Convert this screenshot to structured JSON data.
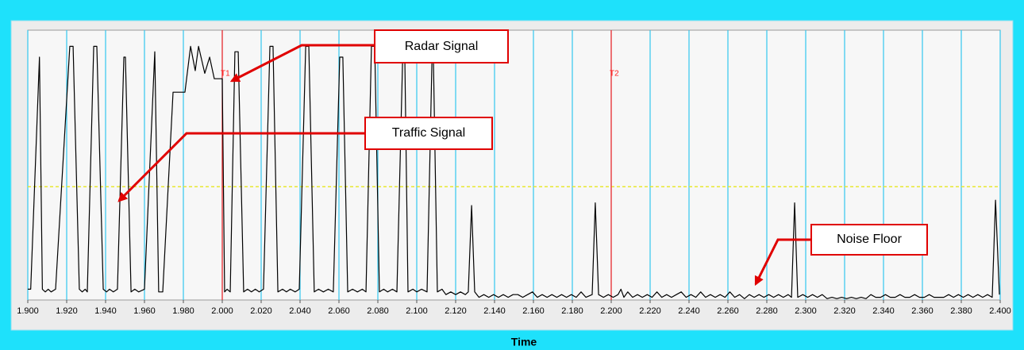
{
  "chart_data": {
    "type": "line",
    "x_label": "Time",
    "color": "#000000",
    "grid": true,
    "grid_color": "#33c8ee",
    "xlim": [
      1.9,
      2.4
    ],
    "ylim": [
      0,
      100
    ],
    "xticks": [
      {
        "value": 1.9,
        "label": "1.900"
      },
      {
        "value": 1.92,
        "label": "1.920"
      },
      {
        "value": 1.94,
        "label": "1.940"
      },
      {
        "value": 1.96,
        "label": "1.960"
      },
      {
        "value": 1.98,
        "label": "1.980"
      },
      {
        "value": 2.0,
        "label": "2.000"
      },
      {
        "value": 2.02,
        "label": "2.020"
      },
      {
        "value": 2.04,
        "label": "2.040"
      },
      {
        "value": 2.06,
        "label": "2.060"
      },
      {
        "value": 2.08,
        "label": "2.080"
      },
      {
        "value": 2.1,
        "label": "2.100"
      },
      {
        "value": 2.12,
        "label": "2.120"
      },
      {
        "value": 2.14,
        "label": "2.140"
      },
      {
        "value": 2.16,
        "label": "2.160"
      },
      {
        "value": 2.18,
        "label": "2.180"
      },
      {
        "value": 2.2,
        "label": "2.200"
      },
      {
        "value": 2.22,
        "label": "2.220"
      },
      {
        "value": 2.24,
        "label": "2.240"
      },
      {
        "value": 2.26,
        "label": "2.260"
      },
      {
        "value": 2.28,
        "label": "2.280"
      },
      {
        "value": 2.3,
        "label": "2.300"
      },
      {
        "value": 2.32,
        "label": "2.320"
      },
      {
        "value": 2.34,
        "label": "2.340"
      },
      {
        "value": 2.36,
        "label": "2.360"
      },
      {
        "value": 2.38,
        "label": "2.380"
      },
      {
        "value": 2.4,
        "label": "2.400"
      }
    ],
    "threshold": {
      "value": 42,
      "color": "#e8e830"
    },
    "cursors": [
      {
        "label": "T1",
        "x": 2.0,
        "color": "#ff2020"
      },
      {
        "label": "T2",
        "x": 2.2,
        "color": "#ff2020"
      }
    ],
    "annotations": [
      "Radar Signal",
      "Traffic Signal",
      "Noise Floor"
    ],
    "x": [
      1.9,
      1.9015,
      1.906,
      1.9075,
      1.909,
      1.9105,
      1.912,
      1.9143,
      1.9216,
      1.9233,
      1.9265,
      1.928,
      1.9295,
      1.9306,
      1.9339,
      1.9355,
      1.9388,
      1.9405,
      1.942,
      1.944,
      1.9461,
      1.9494,
      1.9502,
      1.9531,
      1.955,
      1.957,
      1.96,
      1.9653,
      1.9673,
      1.9694,
      1.9747,
      1.9808,
      1.9837,
      1.9861,
      1.9878,
      1.991,
      1.9935,
      1.9959,
      2.0,
      2.0012,
      2.0025,
      2.0041,
      2.0065,
      2.0082,
      2.011,
      2.013,
      2.015,
      2.017,
      2.019,
      2.0212,
      2.0245,
      2.0261,
      2.0286,
      2.031,
      2.033,
      2.035,
      2.0375,
      2.0396,
      2.0429,
      2.0445,
      2.0473,
      2.0495,
      2.052,
      2.0545,
      2.0571,
      2.0604,
      2.062,
      2.0645,
      2.067,
      2.0695,
      2.072,
      2.0739,
      2.0767,
      2.0784,
      2.0808,
      2.083,
      2.085,
      2.0875,
      2.0898,
      2.0927,
      2.0939,
      2.0955,
      2.098,
      2.1,
      2.1025,
      2.1053,
      2.1078,
      2.1086,
      2.1106,
      2.113,
      2.115,
      2.1175,
      2.12,
      2.1225,
      2.125,
      2.1265,
      2.1282,
      2.1298,
      2.132,
      2.1345,
      2.137,
      2.1395,
      2.142,
      2.1445,
      2.147,
      2.1495,
      2.152,
      2.1545,
      2.157,
      2.1595,
      2.162,
      2.1645,
      2.167,
      2.1695,
      2.172,
      2.1745,
      2.177,
      2.1795,
      2.182,
      2.1845,
      2.187,
      2.1902,
      2.1918,
      2.1935,
      2.196,
      2.1985,
      2.201,
      2.2035,
      2.205,
      2.2065,
      2.2085,
      2.211,
      2.2135,
      2.216,
      2.2185,
      2.221,
      2.2235,
      2.226,
      2.2285,
      2.231,
      2.2335,
      2.236,
      2.2385,
      2.241,
      2.2435,
      2.246,
      2.2485,
      2.251,
      2.2535,
      2.256,
      2.2585,
      2.261,
      2.2635,
      2.266,
      2.2685,
      2.271,
      2.2735,
      2.276,
      2.2785,
      2.281,
      2.2835,
      2.286,
      2.2885,
      2.291,
      2.2927,
      2.2943,
      2.2959,
      2.2985,
      2.301,
      2.3035,
      2.306,
      2.3085,
      2.311,
      2.3135,
      2.316,
      2.3185,
      2.321,
      2.3235,
      2.326,
      2.3285,
      2.331,
      2.3335,
      2.336,
      2.3385,
      2.341,
      2.3435,
      2.346,
      2.3485,
      2.351,
      2.3535,
      2.356,
      2.3585,
      2.361,
      2.3635,
      2.366,
      2.3685,
      2.371,
      2.3735,
      2.376,
      2.3785,
      2.381,
      2.3835,
      2.386,
      2.3885,
      2.391,
      2.3935,
      2.3959,
      2.3976,
      2.3996
    ],
    "values": [
      4,
      4,
      90,
      4,
      3,
      4,
      3,
      4,
      94,
      94,
      4,
      3,
      4,
      3,
      94,
      94,
      4,
      3,
      4,
      3,
      4,
      90,
      90,
      3,
      4,
      3,
      4,
      92,
      3,
      3,
      77,
      77,
      94,
      85,
      94,
      84,
      90,
      82,
      82,
      3,
      4,
      3,
      92,
      92,
      3,
      4,
      3,
      4,
      3,
      4,
      94,
      94,
      3,
      4,
      3,
      4,
      3,
      4,
      94,
      94,
      3,
      4,
      3,
      4,
      3,
      90,
      90,
      3,
      4,
      3,
      4,
      3,
      94,
      94,
      3,
      4,
      3,
      4,
      3,
      88,
      88,
      3,
      4,
      3,
      4,
      3,
      88,
      88,
      3,
      4,
      2,
      3,
      2,
      3,
      2,
      3,
      35,
      3,
      1,
      2,
      1,
      2,
      1,
      2,
      1,
      2,
      2,
      1,
      2,
      3,
      1,
      2,
      1,
      2,
      1,
      2,
      1,
      2,
      1,
      3,
      1,
      2,
      36,
      2,
      1,
      2,
      1,
      2,
      4,
      1,
      3,
      1,
      2,
      1,
      2,
      1,
      3,
      1,
      2,
      1,
      2,
      3,
      1,
      2,
      1,
      3,
      1,
      2,
      1,
      2,
      1,
      3,
      1,
      2,
      0.5,
      2,
      1,
      2,
      1,
      2,
      1,
      2,
      1,
      2,
      1,
      36,
      1,
      2,
      1,
      2,
      1,
      2,
      0.5,
      1,
      0.5,
      1,
      0.5,
      1,
      0.5,
      1,
      0.5,
      2,
      1,
      1,
      2,
      1,
      1,
      2,
      1,
      1,
      2,
      1,
      1,
      2,
      1,
      1,
      1,
      2,
      1,
      2,
      1,
      2,
      1,
      2,
      1,
      2,
      1,
      37,
      2
    ]
  }
}
